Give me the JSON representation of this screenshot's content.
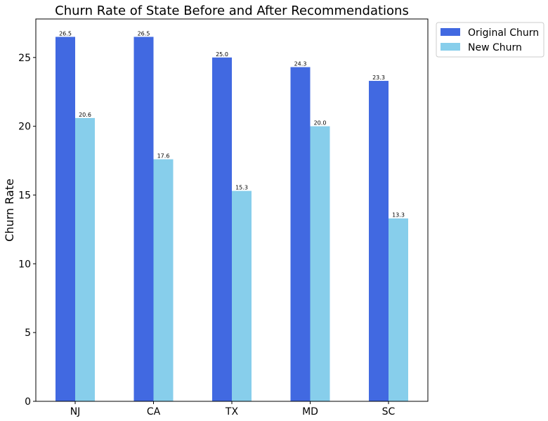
{
  "chart_data": {
    "type": "bar",
    "title": "Churn Rate of State Before and After Recommendations",
    "xlabel": "",
    "ylabel": "Churn Rate",
    "categories": [
      "NJ",
      "CA",
      "TX",
      "MD",
      "SC"
    ],
    "series": [
      {
        "name": "Original Churn",
        "values": [
          26.5,
          26.5,
          25.0,
          24.3,
          23.3
        ],
        "labels": [
          "26.5",
          "26.5",
          "25.0",
          "24.3",
          "23.3"
        ],
        "color": "#4169e1"
      },
      {
        "name": "New Churn",
        "values": [
          20.6,
          17.6,
          15.3,
          20.0,
          13.3
        ],
        "labels": [
          "20.6",
          "17.6",
          "15.3",
          "20.0",
          "13.3"
        ],
        "color": "#87ceeb"
      }
    ],
    "ylim": [
      0,
      27.8
    ],
    "yticks": [
      0,
      5,
      10,
      15,
      20,
      25
    ],
    "ytick_labels": [
      "0",
      "5",
      "10",
      "15",
      "20",
      "25"
    ],
    "grid": false,
    "legend_position": "outside top-right"
  }
}
